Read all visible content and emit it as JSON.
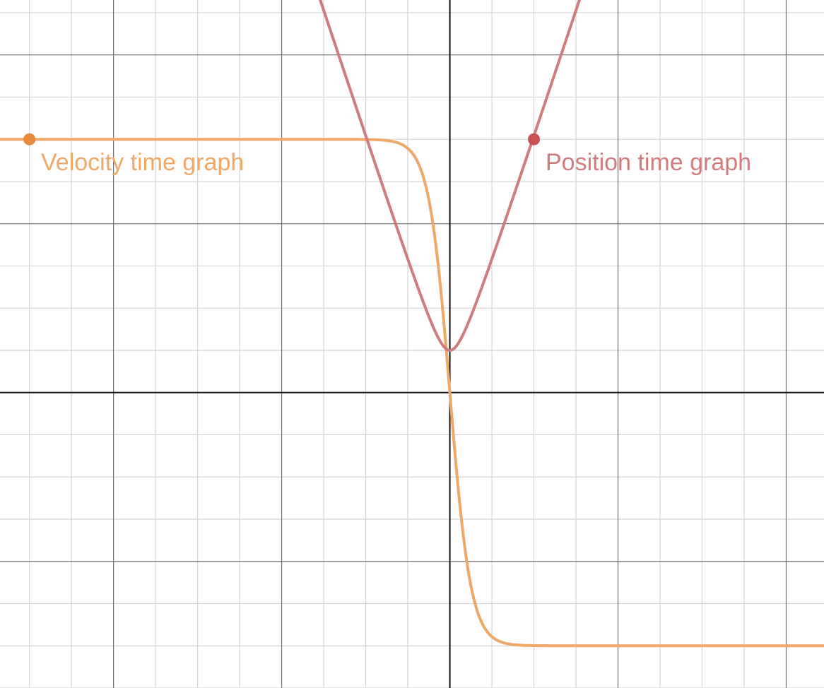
{
  "chart_data": {
    "type": "line",
    "title": "",
    "xlabel": "",
    "ylabel": "",
    "xlim": [
      -5.35,
      4.45
    ],
    "ylim": [
      -3.5,
      4.65
    ],
    "grid": true,
    "grid_minor_step": 0.5,
    "grid_major_step": 2,
    "series": [
      {
        "id": "velocity",
        "name": "Velocity time graph",
        "color": "#eea86a",
        "point_color": "#e8893b",
        "formula": "-3*tanh(4*x)",
        "x": [
          -5.35,
          -2,
          -1,
          -0.6,
          -0.4,
          -0.3,
          -0.2,
          -0.15,
          -0.1,
          -0.05,
          0,
          0.05,
          0.1,
          0.15,
          0.2,
          0.3,
          0.4,
          0.6,
          1,
          2,
          4.45
        ],
        "y": [
          3,
          3,
          2.999,
          2.975,
          2.75,
          2.51,
          1.99,
          1.61,
          1.14,
          0.59,
          0,
          -0.59,
          -1.14,
          -1.61,
          -1.99,
          -2.51,
          -2.75,
          -2.975,
          -2.999,
          -3,
          -3
        ],
        "labeled_point": [
          -5,
          3
        ]
      },
      {
        "id": "position",
        "name": "Position time graph",
        "color": "#d07c7c",
        "point_color": "#c85252",
        "formula": "sqrt(9*x^2 + 0.25)",
        "x": [
          -1.55,
          -1.2,
          -1,
          -0.8,
          -0.6,
          -0.4,
          -0.2,
          -0.1,
          0,
          0.1,
          0.2,
          0.4,
          0.6,
          0.8,
          1,
          1.2,
          1.55
        ],
        "y": [
          4.68,
          3.63,
          3.04,
          2.45,
          1.87,
          1.3,
          0.78,
          0.58,
          0.5,
          0.58,
          0.78,
          1.3,
          1.87,
          2.45,
          3.04,
          3.63,
          4.68
        ],
        "labeled_point": [
          1,
          3
        ]
      }
    ]
  }
}
